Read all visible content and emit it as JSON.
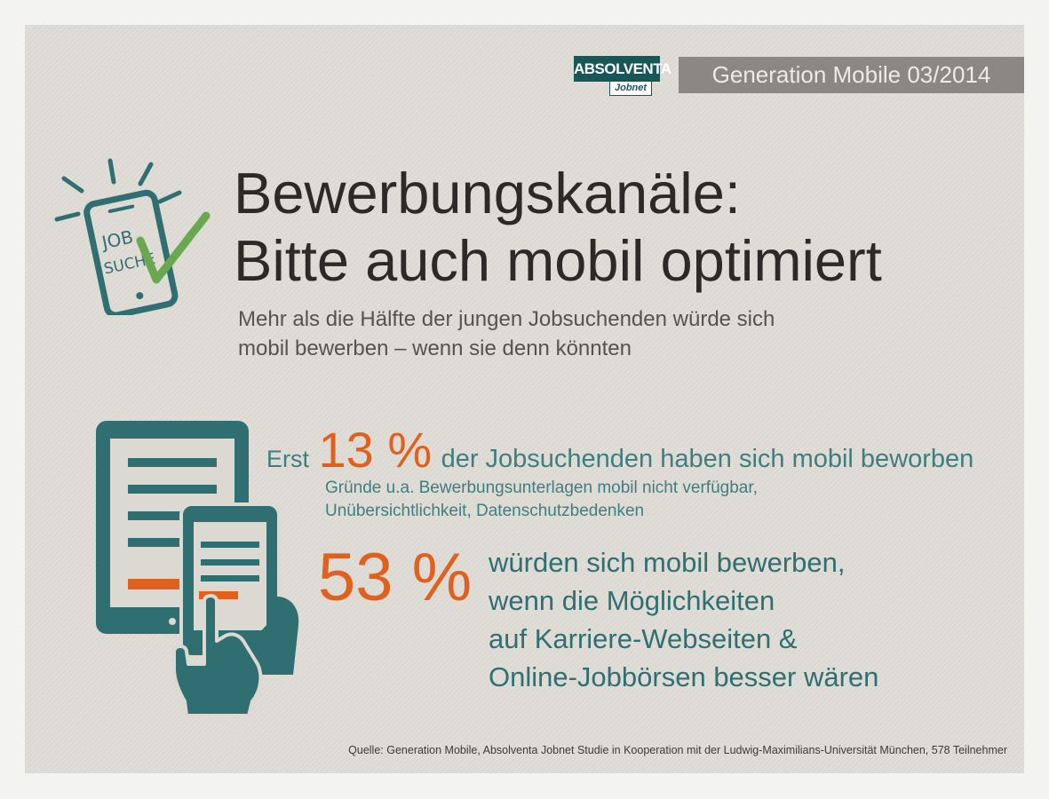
{
  "logo": {
    "brand": "ABSOLVENTA",
    "sub": "Jobnet"
  },
  "badge": "Generation Mobile 03/2014",
  "title_line1": "Bewerbungskanäle:",
  "title_line2": "Bitte auch mobil optimiert",
  "subtitle_line1": "Mehr als die Hälfte der jungen Jobsuchenden würde sich",
  "subtitle_line2": "mobil bewerben – wenn sie denn könnten",
  "phone_icon": {
    "text_line1": "JOB",
    "text_line2": "SUCHE"
  },
  "stat1": {
    "prefix": "Erst",
    "value": "13 %",
    "text": "der Jobsuchenden haben sich mobil beworben",
    "reasons_line1": "Gründe u.a. Bewerbungsunterlagen mobil nicht verfügbar,",
    "reasons_line2": "Unübersichtlichkeit, Datenschutzbedenken"
  },
  "stat2": {
    "value": "53 %",
    "line1": "würden sich mobil bewerben,",
    "line2": "wenn die Möglichkeiten",
    "line3": "auf Karriere-Webseiten &",
    "line4": "Online-Jobbörsen besser wären"
  },
  "source": "Quelle: Generation Mobile, Absolventa Jobnet Studie in Kooperation mit der Ludwig-Maximilians-Universität München, 578 Teilnehmer",
  "colors": {
    "teal": "#2f6f72",
    "orange": "#e0611e",
    "green_check": "#6aa84f",
    "background": "#dcd9d3"
  }
}
